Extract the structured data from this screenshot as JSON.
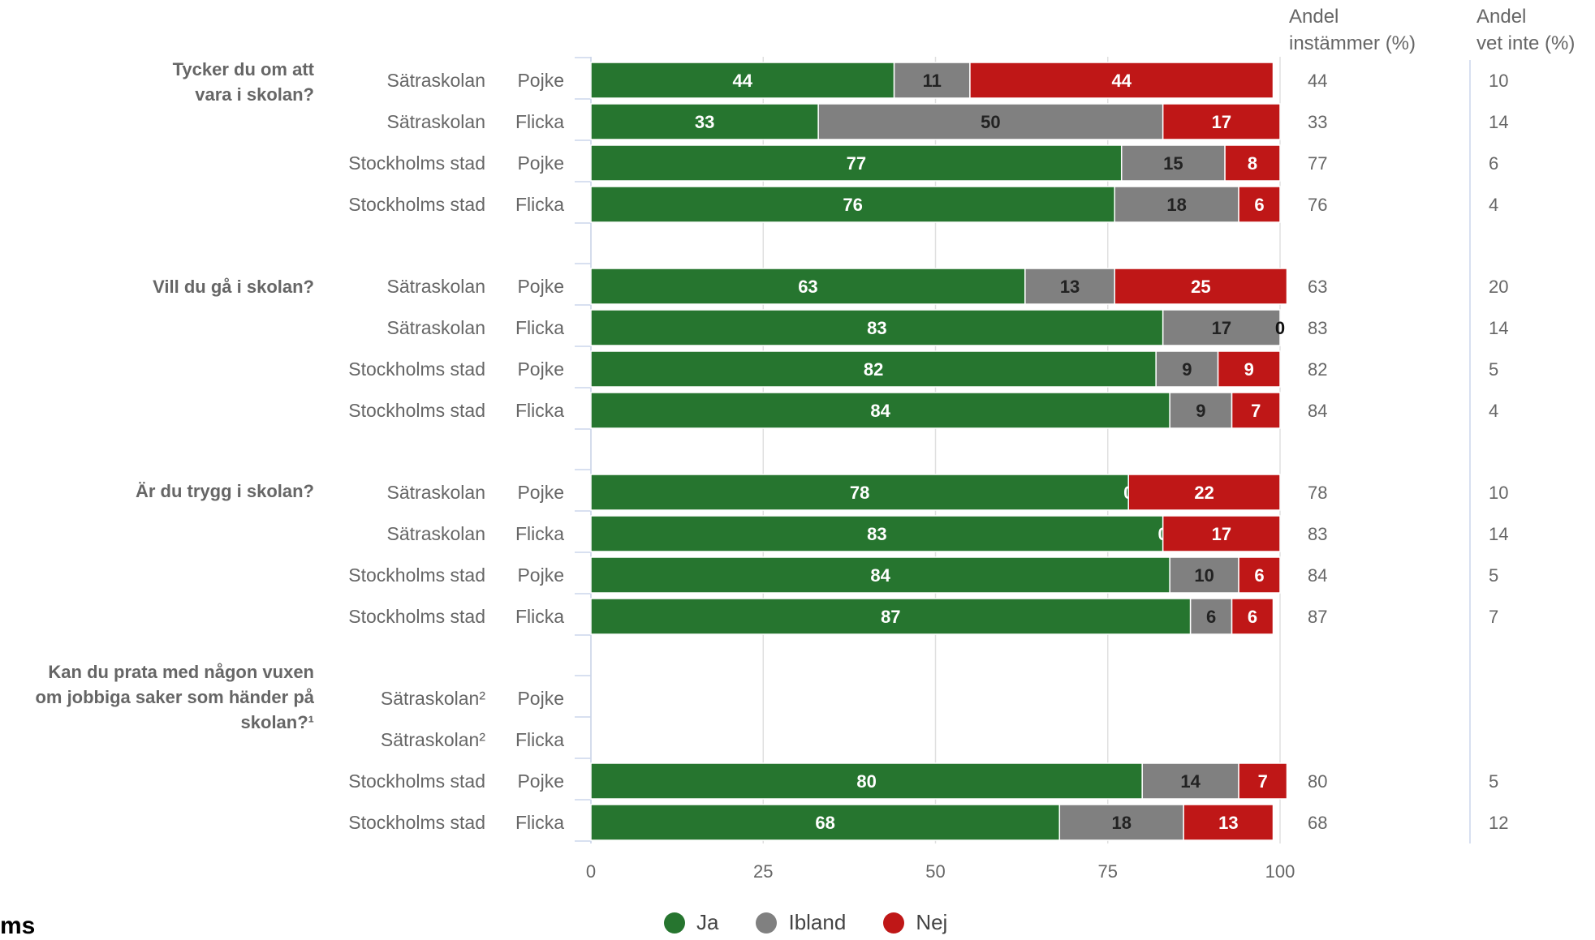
{
  "columns": {
    "andel_instammer": "Andel\ninstämmer (%)",
    "andel_vet_inte": "Andel\nvet inte (%)"
  },
  "corner_text": "ms",
  "legend": [
    {
      "name": "Ja",
      "color": "#26752f"
    },
    {
      "name": "Ibland",
      "color": "#808080"
    },
    {
      "name": "Nej",
      "color": "#bf1717"
    }
  ],
  "questions": [
    {
      "label": "Tycker du om att\nvara i skolan?"
    },
    {
      "label": "Vill du gå i skolan?"
    },
    {
      "label": "Är du trygg i skolan?"
    },
    {
      "label": "Kan du prata med någon vuxen\nom jobbiga saker som händer på\nskolan?¹"
    }
  ],
  "chart_data": {
    "type": "bar",
    "orientation": "horizontal",
    "stacked": true,
    "xlim": [
      0,
      100
    ],
    "x_ticks": [
      "0",
      "25",
      "50",
      "75",
      "100"
    ],
    "series": [
      {
        "name": "Ja",
        "color": "#26752f"
      },
      {
        "name": "Ibland",
        "color": "#808080"
      },
      {
        "name": "Nej",
        "color": "#bf1717"
      }
    ],
    "rows": [
      {
        "q": 0,
        "group": "Sätraskolan",
        "gender": "Pojke",
        "values": [
          44,
          11,
          44
        ],
        "andel": "44",
        "vet_inte": "10"
      },
      {
        "q": 0,
        "group": "Sätraskolan",
        "gender": "Flicka",
        "values": [
          33,
          50,
          17
        ],
        "andel": "33",
        "vet_inte": "14"
      },
      {
        "q": 0,
        "group": "Stockholms stad",
        "gender": "Pojke",
        "values": [
          77,
          15,
          8
        ],
        "andel": "77",
        "vet_inte": "6"
      },
      {
        "q": 0,
        "group": "Stockholms stad",
        "gender": "Flicka",
        "values": [
          76,
          18,
          6
        ],
        "andel": "76",
        "vet_inte": "4"
      },
      {
        "q": 1,
        "group": "Sätraskolan",
        "gender": "Pojke",
        "values": [
          63,
          13,
          25
        ],
        "andel": "63",
        "vet_inte": "20"
      },
      {
        "q": 1,
        "group": "Sätraskolan",
        "gender": "Flicka",
        "values": [
          83,
          17,
          0
        ],
        "andel": "83",
        "vet_inte": "14"
      },
      {
        "q": 1,
        "group": "Stockholms stad",
        "gender": "Pojke",
        "values": [
          82,
          9,
          9
        ],
        "andel": "82",
        "vet_inte": "5"
      },
      {
        "q": 1,
        "group": "Stockholms stad",
        "gender": "Flicka",
        "values": [
          84,
          9,
          7
        ],
        "andel": "84",
        "vet_inte": "4"
      },
      {
        "q": 2,
        "group": "Sätraskolan",
        "gender": "Pojke",
        "values": [
          78,
          0,
          22
        ],
        "andel": "78",
        "vet_inte": "10"
      },
      {
        "q": 2,
        "group": "Sätraskolan",
        "gender": "Flicka",
        "values": [
          83,
          0,
          17
        ],
        "andel": "83",
        "vet_inte": "14"
      },
      {
        "q": 2,
        "group": "Stockholms stad",
        "gender": "Pojke",
        "values": [
          84,
          10,
          6
        ],
        "andel": "84",
        "vet_inte": "5"
      },
      {
        "q": 2,
        "group": "Stockholms stad",
        "gender": "Flicka",
        "values": [
          87,
          6,
          6
        ],
        "andel": "87",
        "vet_inte": "7"
      },
      {
        "q": 3,
        "group": "Sätraskolan²",
        "gender": "Pojke",
        "values": null,
        "andel": "",
        "vet_inte": ""
      },
      {
        "q": 3,
        "group": "Sätraskolan²",
        "gender": "Flicka",
        "values": null,
        "andel": "",
        "vet_inte": ""
      },
      {
        "q": 3,
        "group": "Stockholms stad",
        "gender": "Pojke",
        "values": [
          80,
          14,
          7
        ],
        "andel": "80",
        "vet_inte": "5"
      },
      {
        "q": 3,
        "group": "Stockholms stad",
        "gender": "Flicka",
        "values": [
          68,
          18,
          13
        ],
        "andel": "68",
        "vet_inte": "12"
      }
    ]
  }
}
